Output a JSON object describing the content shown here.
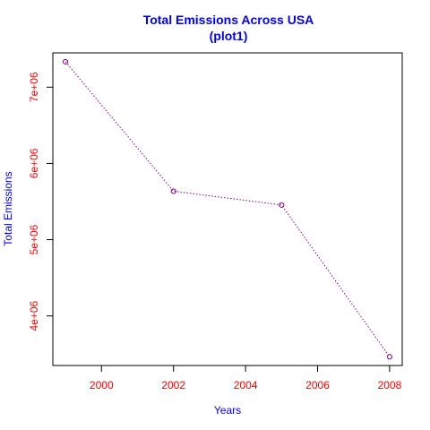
{
  "chart_data": {
    "type": "line",
    "title": "Total Emissions Across USA",
    "subtitle": "(plot1)",
    "xlabel": "Years",
    "ylabel": "Total Emissions",
    "x": [
      1999,
      2002,
      2005,
      2008
    ],
    "series": [
      {
        "values": [
          7332967,
          5635780,
          5454703,
          3464206
        ]
      }
    ],
    "xlim": [
      1998.65,
      2008.35
    ],
    "ylim": [
      3350000,
      7450000
    ],
    "xticks": [
      {
        "value": 2000,
        "label": "2000"
      },
      {
        "value": 2002,
        "label": "2002"
      },
      {
        "value": 2004,
        "label": "2004"
      },
      {
        "value": 2006,
        "label": "2006"
      },
      {
        "value": 2008,
        "label": "2008"
      }
    ],
    "yticks": [
      {
        "value": 4000000,
        "label": "4e+06"
      },
      {
        "value": 5000000,
        "label": "5e+06"
      },
      {
        "value": 6000000,
        "label": "6e+06"
      },
      {
        "value": 7000000,
        "label": "7e+06"
      }
    ],
    "grid": false,
    "legend": "none",
    "colors": {
      "title": "#0000ff",
      "axis_label": "#0000ff",
      "tick_label": "#ff0000",
      "line": "#8b008b",
      "marker": "#8b008b"
    }
  }
}
